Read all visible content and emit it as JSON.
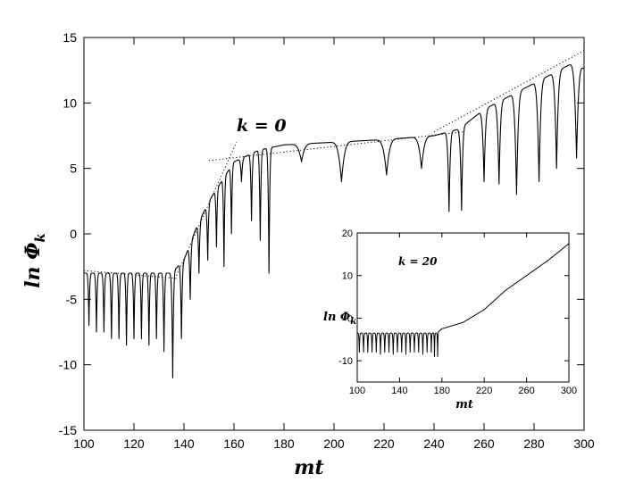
{
  "chart_data": [
    {
      "type": "line",
      "title": "",
      "xlabel": "mt",
      "ylabel": "ln Φ",
      "ylabel_sub": "k",
      "xlim": [
        100,
        300
      ],
      "ylim": [
        -15,
        15
      ],
      "xticks": [
        100,
        120,
        140,
        160,
        180,
        200,
        220,
        240,
        260,
        280,
        300
      ],
      "yticks": [
        -15,
        -10,
        -5,
        0,
        5,
        10,
        15
      ],
      "annotation": "k = 0",
      "grid": false,
      "series": [
        {
          "line_style": "solid",
          "envelope_x": [
            100,
            135,
            140,
            145,
            150,
            155,
            160,
            170,
            180,
            200,
            220,
            240,
            250,
            260,
            270,
            280,
            290,
            297,
            300
          ],
          "envelope_y": [
            -3.0,
            -3.0,
            -2.0,
            0.5,
            2.5,
            4.0,
            5.5,
            6.4,
            6.8,
            7.0,
            7.2,
            7.5,
            8.0,
            9.5,
            10.5,
            11.5,
            12.5,
            13.2,
            12.6
          ],
          "dips_x": [
            102,
            105,
            108,
            111,
            114,
            117,
            120,
            123,
            126,
            129,
            132,
            135.5,
            139,
            142.5,
            146,
            149.5,
            153,
            156,
            159,
            163,
            167,
            170.5,
            174,
            187,
            203,
            221,
            235,
            246,
            251,
            260,
            266,
            273,
            282,
            289,
            297
          ],
          "dips_y": [
            -7.0,
            -7.5,
            -7.5,
            -8.0,
            -8.0,
            -8.5,
            -8.0,
            -8.0,
            -8.5,
            -8.0,
            -9.0,
            -11.0,
            -8.0,
            -5.0,
            -3.0,
            -2.0,
            -1.0,
            -2.5,
            0.0,
            4.0,
            1.0,
            -0.5,
            -3.0,
            5.5,
            4.0,
            4.5,
            5.0,
            1.7,
            1.8,
            4.0,
            3.8,
            3.0,
            4.0,
            5.0,
            5.8
          ]
        },
        {
          "line_style": "dotted",
          "x": [
            100,
            137
          ],
          "y": [
            -2.8,
            -3.4
          ]
        },
        {
          "line_style": "dotted",
          "x": [
            137,
            161
          ],
          "y": [
            -3.2,
            7.0
          ]
        },
        {
          "line_style": "dotted",
          "x": [
            150,
            252
          ],
          "y": [
            5.6,
            7.8
          ]
        },
        {
          "line_style": "dotted",
          "x": [
            240,
            300
          ],
          "y": [
            7.8,
            14.0
          ]
        }
      ]
    },
    {
      "type": "line",
      "title": "",
      "xlabel": "mt",
      "ylabel": "ln  Φ",
      "ylabel_sub": "k",
      "xlim": [
        100,
        300
      ],
      "ylim": [
        -15,
        20
      ],
      "xticks": [
        100,
        140,
        180,
        220,
        260,
        300
      ],
      "yticks": [
        -10,
        0,
        10,
        20
      ],
      "annotation": "k = 20",
      "grid": false,
      "series": [
        {
          "line_style": "solid",
          "envelope_x": [
            100,
            175,
            180,
            200,
            220,
            240,
            260,
            280,
            300
          ],
          "envelope_y": [
            -3.5,
            -3.5,
            -2.5,
            -1.0,
            2.0,
            6.5,
            10.0,
            13.5,
            17.5
          ],
          "dips_x": [
            102,
            106,
            110,
            114,
            118,
            122,
            126,
            130,
            134,
            138,
            142,
            146,
            150,
            154,
            158,
            162,
            166,
            170,
            173,
            176
          ],
          "dips_y": [
            -8.0,
            -8.0,
            -8.0,
            -8.0,
            -8.0,
            -8.5,
            -8.0,
            -8.0,
            -8.5,
            -8.0,
            -8.0,
            -8.5,
            -8.0,
            -8.0,
            -8.0,
            -8.5,
            -8.0,
            -8.0,
            -9.0,
            -9.0
          ]
        }
      ]
    }
  ]
}
